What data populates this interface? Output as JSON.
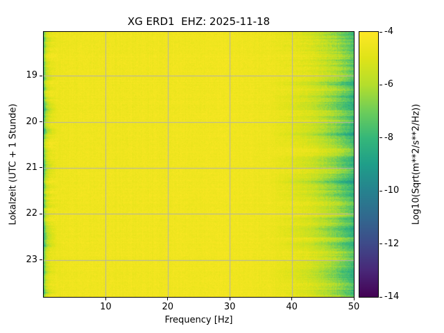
{
  "chart_data": {
    "type": "heatmap",
    "title": "XG ERD1  EHZ: 2025-11-18",
    "xlabel": "Frequency [Hz]",
    "ylabel": "Lokalzeit (UTC + 1 Stunde)",
    "x_range_hz": [
      0,
      50
    ],
    "x_ticks": [
      10,
      20,
      30,
      40,
      50
    ],
    "y_range_hours": [
      18.05,
      23.8
    ],
    "y_ticks": [
      19,
      20,
      21,
      22,
      23
    ],
    "grid": true,
    "grid_color": "#b0b0b0",
    "colorbar": {
      "label": "Log10(Sqrt(m**2/s**2/Hz))",
      "ticks": [
        -4,
        -6,
        -8,
        -10,
        -12,
        -14
      ],
      "range": [
        -14,
        -4
      ],
      "colormap": "viridis",
      "stops": [
        [
          0.0,
          "#440154"
        ],
        [
          0.1,
          "#482878"
        ],
        [
          0.2,
          "#3e4a89"
        ],
        [
          0.3,
          "#31688e"
        ],
        [
          0.4,
          "#26828e"
        ],
        [
          0.5,
          "#1f9e89"
        ],
        [
          0.6,
          "#35b779"
        ],
        [
          0.7,
          "#6dcd59"
        ],
        [
          0.8,
          "#b4de2c"
        ],
        [
          0.9,
          "#dfe318"
        ],
        [
          1.0,
          "#fde725"
        ]
      ]
    },
    "value_profile_hz_log10": [
      [
        0.0,
        -8.2
      ],
      [
        0.2,
        -6.6
      ],
      [
        0.5,
        -5.6
      ],
      [
        1.0,
        -4.9
      ],
      [
        2.0,
        -4.55
      ],
      [
        4.0,
        -4.45
      ],
      [
        30.0,
        -4.4
      ],
      [
        36.0,
        -4.5
      ],
      [
        40.0,
        -4.75
      ],
      [
        43.0,
        -5.2
      ],
      [
        45.0,
        -5.7
      ],
      [
        47.0,
        -6.3
      ],
      [
        49.0,
        -7.2
      ],
      [
        50.0,
        -7.8
      ]
    ],
    "noise_amplitude": 0.22
  }
}
